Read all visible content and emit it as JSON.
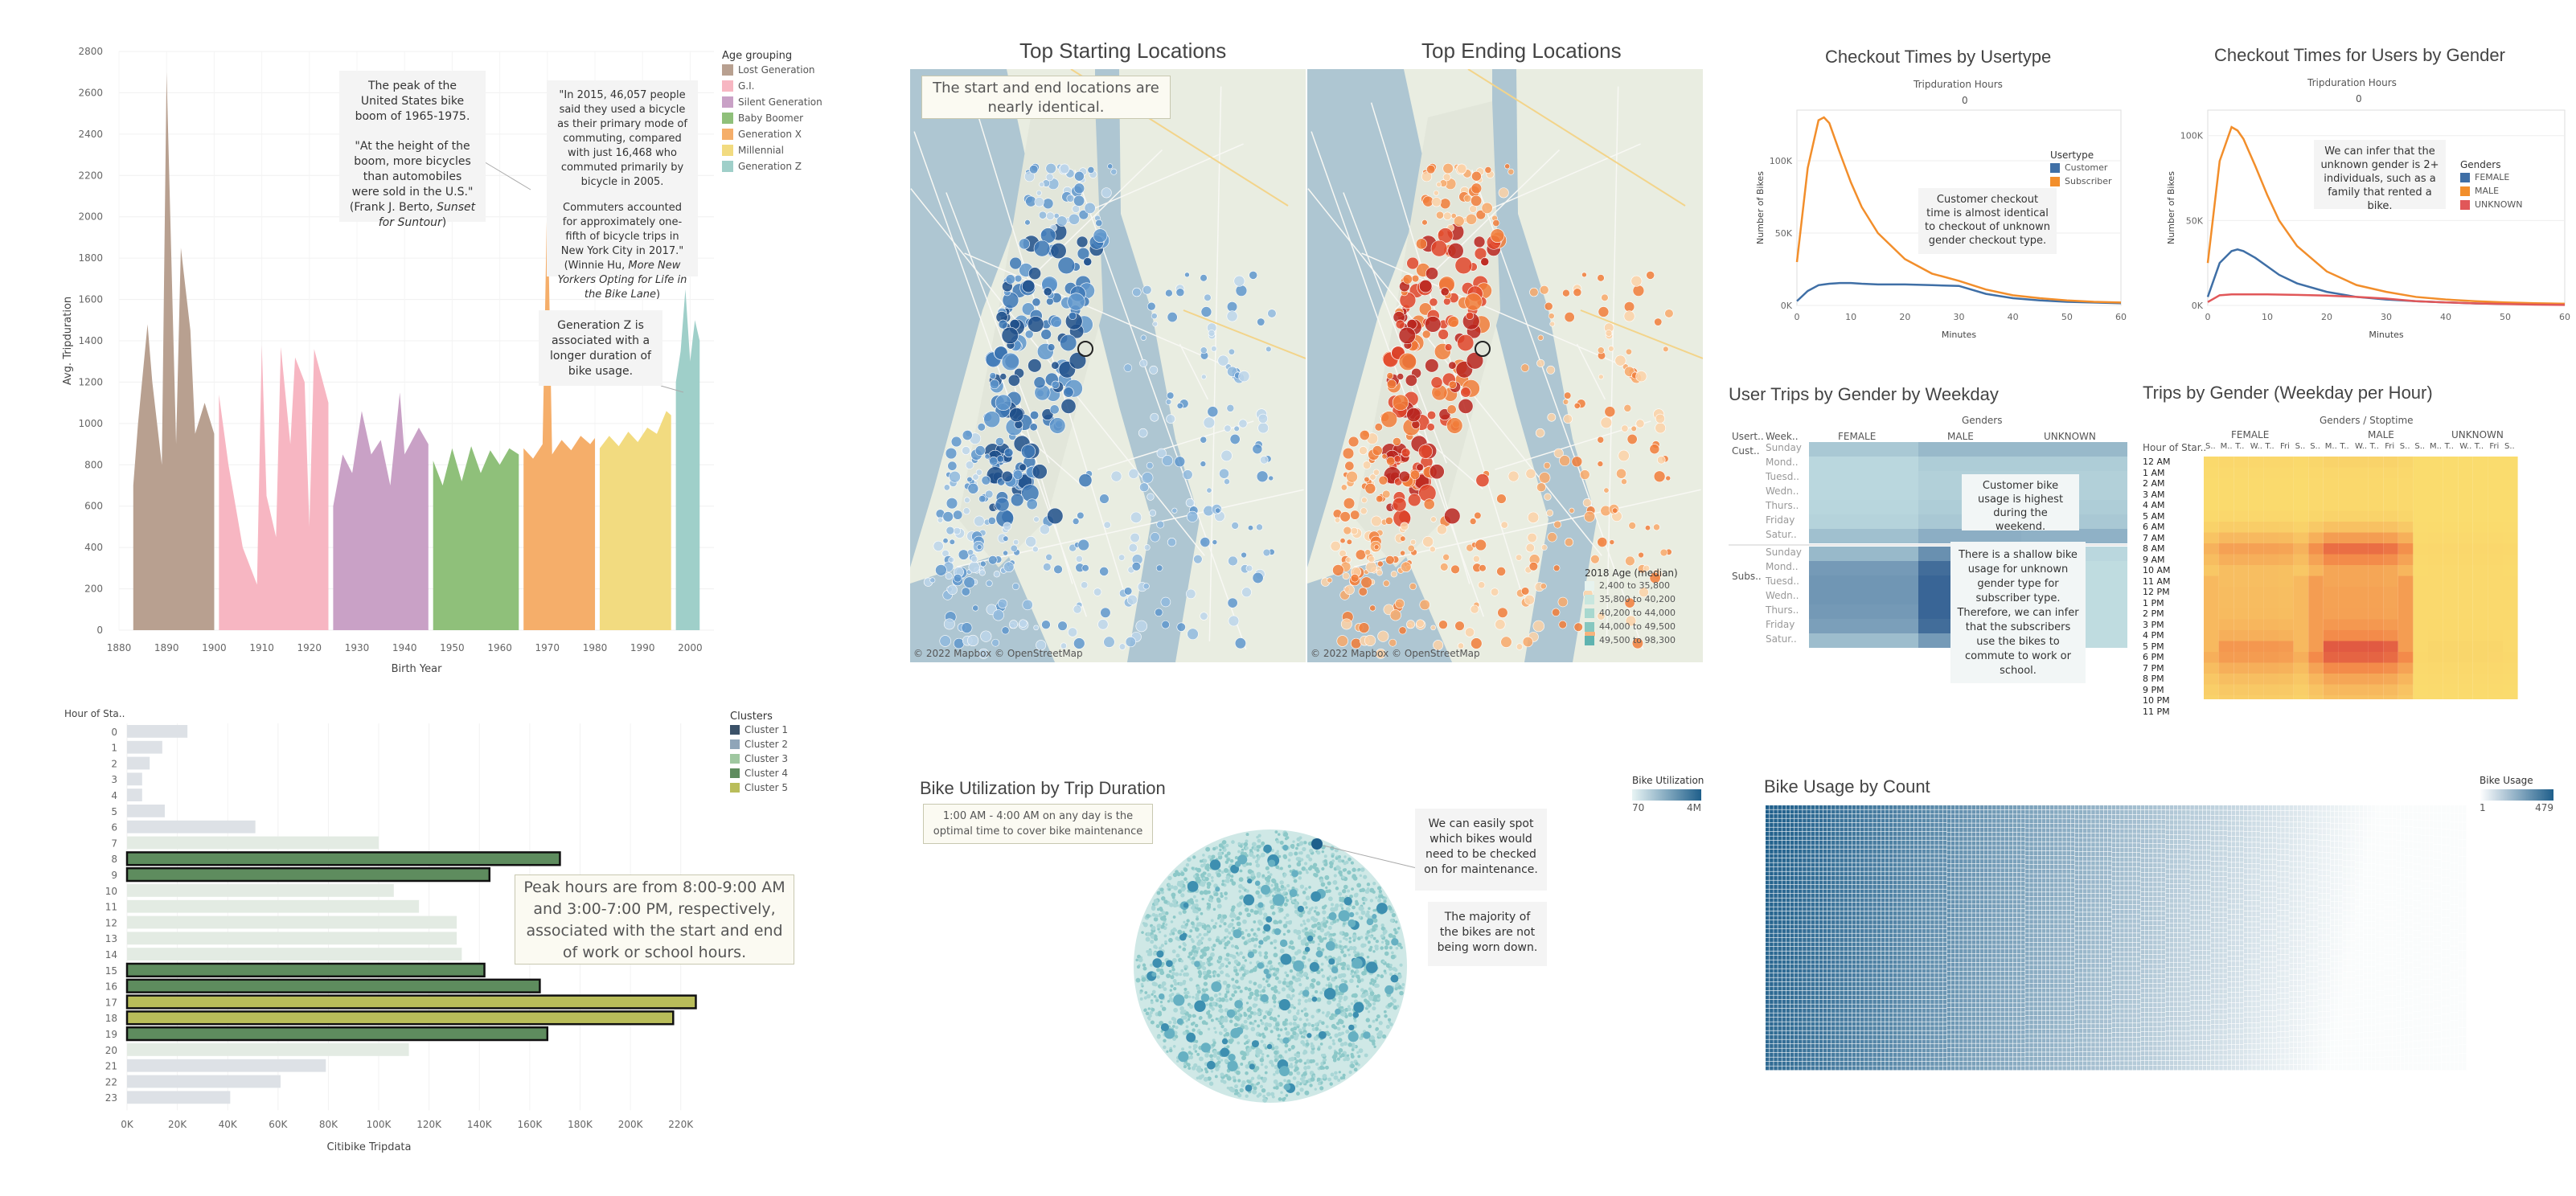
{
  "colors": {
    "lost": "#b8a090",
    "gi": "#f7b6c2",
    "silent": "#c9a1c6",
    "boomer": "#8fc07a",
    "genx": "#f5ae6a",
    "millennial": "#f2db80",
    "genz": "#9fcfc9",
    "customer": "#3f6fa6",
    "subscriber": "#f28e2b",
    "female": "#3f6fa6",
    "male": "#f28e2b",
    "unknown": "#e15759",
    "c1": "#3b5168",
    "c2": "#8fa5b8",
    "c3": "#9fc7a0",
    "c4": "#5e8c5e",
    "c5": "#b9bd5a"
  },
  "birth": {
    "chart_data": {
      "type": "area",
      "xlabel": "Birth Year",
      "ylabel": "Avg. Tripduration",
      "ylim": [
        0,
        2800
      ],
      "xlim": [
        1880,
        2005
      ],
      "yticks": [
        "0",
        "200",
        "400",
        "600",
        "800",
        "1000",
        "1200",
        "1400",
        "1600",
        "1800",
        "2000",
        "2200",
        "2400",
        "2600",
        "2800"
      ],
      "xticks": [
        "1880",
        "1890",
        "1900",
        "1910",
        "1920",
        "1930",
        "1940",
        "1950",
        "1960",
        "1970",
        "1980",
        "1990",
        "2000"
      ],
      "series": [
        {
          "name": "Lost Generation",
          "color_key": "lost",
          "x": [
            1883,
            1884,
            1886,
            1887,
            1889,
            1890,
            1892,
            1893,
            1895,
            1896,
            1898,
            1900
          ],
          "values": [
            700,
            1000,
            1480,
            1200,
            800,
            2700,
            900,
            1850,
            1450,
            950,
            1100,
            950
          ]
        },
        {
          "name": "G.I.",
          "color_key": "gi",
          "x": [
            1901,
            1903,
            1906,
            1909,
            1910,
            1911,
            1913,
            1914,
            1916,
            1917,
            1919,
            1920,
            1921,
            1924
          ],
          "values": [
            1140,
            800,
            400,
            220,
            1380,
            650,
            450,
            1370,
            900,
            1320,
            1200,
            500,
            1360,
            1100
          ]
        },
        {
          "name": "Silent Generation",
          "color_key": "silent",
          "x": [
            1925,
            1927,
            1929,
            1931,
            1933,
            1935,
            1937,
            1939,
            1940,
            1943,
            1945
          ],
          "values": [
            600,
            850,
            760,
            1060,
            850,
            920,
            700,
            1150,
            850,
            980,
            900
          ]
        },
        {
          "name": "Baby Boomer",
          "color_key": "boomer",
          "x": [
            1946,
            1948,
            1950,
            1952,
            1954,
            1956,
            1958,
            1960,
            1962,
            1964
          ],
          "values": [
            820,
            700,
            880,
            720,
            890,
            760,
            870,
            800,
            880,
            850
          ]
        },
        {
          "name": "Generation X",
          "color_key": "genx",
          "x": [
            1965,
            1967,
            1969,
            1970,
            1971,
            1973,
            1975,
            1977,
            1979,
            1980
          ],
          "values": [
            880,
            830,
            900,
            2150,
            850,
            920,
            870,
            940,
            900,
            930
          ]
        },
        {
          "name": "Millennial",
          "color_key": "millennial",
          "x": [
            1981,
            1983,
            1985,
            1987,
            1989,
            1991,
            1993,
            1995,
            1996
          ],
          "values": [
            880,
            940,
            890,
            960,
            910,
            980,
            950,
            1060,
            1040
          ]
        },
        {
          "name": "Generation Z",
          "color_key": "genz",
          "x": [
            1997,
            1998,
            1999,
            2000,
            2001,
            2002
          ],
          "values": [
            1200,
            1350,
            1650,
            1300,
            1500,
            1400
          ]
        }
      ]
    },
    "legend_title": "Age grouping",
    "legend": [
      "Lost Generation",
      "G.I.",
      "Silent Generation",
      "Baby Boomer",
      "Generation X",
      "Millennial",
      "Generation Z"
    ],
    "note1": {
      "p1": "The peak of the United States bike boom of 1965-1975.",
      "p2": "\"At the height of the boom, more bicycles than automobiles were sold in the U.S.\" (Frank J. Berto, ",
      "p2_em": "Sunset for Suntour",
      "p2_end": ")"
    },
    "note2": {
      "p1": "\"In 2015, 46,057 people said they used a bicycle as their primary mode of commuting, compared with just 16,468 who commuted primarily by bicycle in 2005.",
      "p2": "Commuters accounted for approximately one-fifth of bicycle trips in New York City in 2017.\" (Winnie Hu, ",
      "p2_em": "More New Yorkers Opting for Life in the Bike Lane",
      "p2_end": ")"
    },
    "note3": "Generation Z is associated with a longer duration of bike usage."
  },
  "maps": {
    "title_start": "Top Starting Locations",
    "title_end": "Top Ending Locations",
    "callout": "The start and end locations are nearly identical.",
    "copyright": "© 2022 Mapbox © OpenStreetMap",
    "legend_title": "2018 Age (median)",
    "legend": [
      "2,400 to 35,800",
      "35,800 to 40,200",
      "40,200 to 44,000",
      "44,000 to 49,500",
      "49,500 to 98,300"
    ]
  },
  "usertype": {
    "title": "Checkout Times by Usertype",
    "top_label": "Tripduration Hours",
    "top_val": "0",
    "chart_data": {
      "type": "line",
      "xlabel": "Minutes",
      "ylabel": "Number of Bikes",
      "xlim": [
        0,
        60
      ],
      "ylim": [
        0,
        135000
      ],
      "xticks": [
        "0",
        "10",
        "20",
        "30",
        "40",
        "50",
        "60"
      ],
      "yticks": [
        "0K",
        "50K",
        "100K"
      ],
      "x": [
        0,
        2,
        4,
        5,
        6,
        8,
        10,
        12,
        15,
        20,
        25,
        30,
        35,
        40,
        45,
        50,
        55,
        60
      ],
      "series": [
        {
          "name": "Customer",
          "color_key": "customer",
          "values": [
            3000,
            10000,
            14000,
            14500,
            15000,
            15500,
            15500,
            15000,
            14500,
            14500,
            14000,
            13500,
            8000,
            5000,
            3500,
            2500,
            2000,
            1500
          ]
        },
        {
          "name": "Subscriber",
          "color_key": "subscriber",
          "values": [
            30000,
            95000,
            128000,
            130000,
            126000,
            105000,
            85000,
            68000,
            50000,
            32000,
            22000,
            17000,
            11000,
            7000,
            5000,
            3500,
            2500,
            2000
          ]
        }
      ]
    },
    "legend_title": "Usertype",
    "legend": [
      "Customer",
      "Subscriber"
    ],
    "note": "Customer checkout time is almost identical to checkout of unknown gender checkout type."
  },
  "gender": {
    "title": "Checkout Times for Users by Gender",
    "top_label": "Tripduration Hours",
    "top_val": "0",
    "chart_data": {
      "type": "line",
      "xlabel": "Minutes",
      "ylabel": "Number of Bikes",
      "xlim": [
        0,
        60
      ],
      "ylim": [
        0,
        115000
      ],
      "xticks": [
        "0",
        "10",
        "20",
        "30",
        "40",
        "50",
        "60"
      ],
      "yticks": [
        "0K",
        "50K",
        "100K"
      ],
      "x": [
        0,
        2,
        4,
        5,
        6,
        8,
        10,
        12,
        15,
        20,
        25,
        30,
        35,
        40,
        45,
        50,
        55,
        60
      ],
      "series": [
        {
          "name": "FEMALE",
          "color_key": "female",
          "values": [
            5000,
            25000,
            32000,
            33000,
            32000,
            28000,
            23000,
            18000,
            13000,
            8000,
            5000,
            3500,
            2500,
            1800,
            1200,
            900,
            700,
            500
          ]
        },
        {
          "name": "MALE",
          "color_key": "male",
          "values": [
            25000,
            85000,
            105000,
            103000,
            98000,
            82000,
            65000,
            50000,
            35000,
            20000,
            12000,
            8000,
            5000,
            3500,
            2500,
            1800,
            1300,
            1000
          ]
        },
        {
          "name": "UNKNOWN",
          "color_key": "unknown",
          "values": [
            2000,
            6000,
            6500,
            6500,
            6500,
            6500,
            6500,
            6400,
            6200,
            5800,
            5000,
            4000,
            2500,
            1800,
            1200,
            800,
            500,
            300
          ]
        }
      ]
    },
    "legend_title": "Genders",
    "legend": [
      "FEMALE",
      "MALE",
      "UNKNOWN"
    ],
    "note": "We can infer that the unknown gender is 2+ individuals, such as a family that rented a bike."
  },
  "weekday": {
    "title": "User Trips by Gender by Weekday",
    "genders_label": "Genders",
    "hdr1": "Usert..",
    "hdr2": "Week..",
    "cols": [
      "FEMALE",
      "MALE",
      "UNKNOWN"
    ],
    "groups": [
      "Cust..",
      "Subs.."
    ],
    "days": [
      "Sunday",
      "Mond..",
      "Tuesd..",
      "Wedn..",
      "Thurs..",
      "Friday",
      "Satur.."
    ],
    "chart_data": {
      "type": "heatmap",
      "rows": [
        "Customer Sunday",
        "Customer Monday",
        "Customer Tuesday",
        "Customer Wednesday",
        "Customer Thursday",
        "Customer Friday",
        "Customer Saturday",
        "Subscriber Sunday",
        "Subscriber Monday",
        "Subscriber Tuesday",
        "Subscriber Wednesday",
        "Subscriber Thursday",
        "Subscriber Friday",
        "Subscriber Saturday"
      ],
      "cols": [
        "FEMALE",
        "MALE",
        "UNKNOWN"
      ],
      "values": [
        [
          0.25,
          0.35,
          0.35
        ],
        [
          0.15,
          0.22,
          0.22
        ],
        [
          0.15,
          0.2,
          0.2
        ],
        [
          0.15,
          0.2,
          0.2
        ],
        [
          0.16,
          0.22,
          0.22
        ],
        [
          0.18,
          0.25,
          0.25
        ],
        [
          0.3,
          0.42,
          0.4
        ],
        [
          0.35,
          0.62,
          0.15
        ],
        [
          0.55,
          0.85,
          0.12
        ],
        [
          0.58,
          0.9,
          0.12
        ],
        [
          0.58,
          0.9,
          0.12
        ],
        [
          0.56,
          0.9,
          0.12
        ],
        [
          0.52,
          0.85,
          0.12
        ],
        [
          0.32,
          0.55,
          0.12
        ]
      ]
    },
    "note1": "Customer bike usage is highest during the weekend.",
    "note2": "There is a shallow bike usage for unknown gender type for subscriber type. Therefore, we can infer that the subscribers use the bikes to commute to work or school."
  },
  "hourly": {
    "title": "Trips by Gender (Weekday per Hour)",
    "genders_label": "Genders / Stoptime",
    "hdr1": "Hour of Star..",
    "cols": [
      "FEMALE",
      "MALE",
      "UNKNOWN"
    ],
    "subcols": [
      "S..",
      "M..",
      "T..",
      "W..",
      "T..",
      "Fri",
      "S.."
    ],
    "hours": [
      "12 AM",
      "1 AM",
      "2 AM",
      "3 AM",
      "4 AM",
      "5 AM",
      "6 AM",
      "7 AM",
      "8 AM",
      "9 AM",
      "10 AM",
      "11 AM",
      "12 PM",
      "1 PM",
      "2 PM",
      "3 PM",
      "4 PM",
      "5 PM",
      "6 PM",
      "7 PM",
      "8 PM",
      "9 PM",
      "10 PM",
      "11 PM"
    ]
  },
  "clusters": {
    "chart_data": {
      "type": "bar",
      "orientation": "horizontal",
      "xlabel": "Citibike Tripdata",
      "ylabel": "Hour of Sta..",
      "xlim": [
        0,
        230000
      ],
      "xticks": [
        "0K",
        "20K",
        "40K",
        "60K",
        "80K",
        "100K",
        "120K",
        "140K",
        "160K",
        "180K",
        "200K",
        "220K"
      ],
      "categories": [
        "0",
        "1",
        "2",
        "3",
        "4",
        "5",
        "6",
        "7",
        "8",
        "9",
        "10",
        "11",
        "12",
        "13",
        "14",
        "15",
        "16",
        "17",
        "18",
        "19",
        "20",
        "21",
        "22",
        "23"
      ],
      "values": [
        24000,
        14000,
        9000,
        6000,
        6000,
        15000,
        51000,
        100000,
        172000,
        144000,
        106000,
        116000,
        131000,
        131000,
        133000,
        142000,
        164000,
        226000,
        217000,
        167000,
        112000,
        79000,
        61000,
        41000
      ],
      "cluster": [
        2,
        2,
        2,
        2,
        2,
        2,
        2,
        3,
        4,
        4,
        3,
        3,
        3,
        3,
        3,
        4,
        4,
        5,
        5,
        4,
        3,
        2,
        2,
        2
      ]
    },
    "legend_title": "Clusters",
    "legend": [
      "Cluster 1",
      "Cluster 2",
      "Cluster 3",
      "Cluster 4",
      "Cluster 5"
    ],
    "note": "Peak hours are from 8:00-9:00 AM and 3:00-7:00 PM, respectively, associated with the start and end of work or school hours."
  },
  "util": {
    "title": "Bike Utilization by Trip Duration",
    "callout": "1:00 AM - 4:00 AM on any day is the optimal time to cover bike maintenance",
    "note1": "We can easily spot which bikes would need to be checked on for maintenance.",
    "note2": "The majority of the bikes are not being worn down.",
    "legend_title": "Bike Utilization",
    "legend_min": "70",
    "legend_max": "4M"
  },
  "count": {
    "title": "Bike Usage by Count",
    "legend_title": "Bike Usage",
    "legend_min": "1",
    "legend_max": "479"
  }
}
